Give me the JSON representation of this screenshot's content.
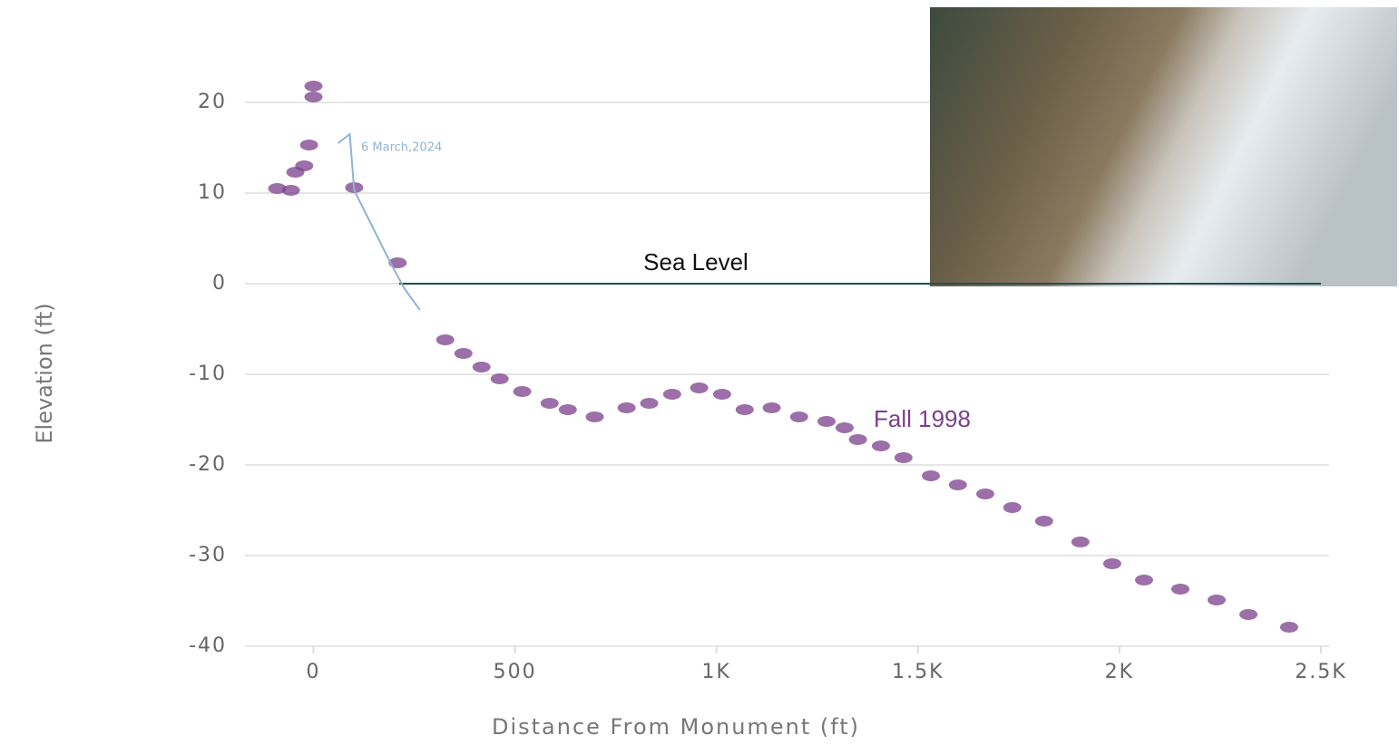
{
  "chart_data": {
    "type": "scatter",
    "x_label": "Distance From Monument (ft)",
    "y_label": "Elevation (ft)",
    "xlim": [
      -170,
      2500
    ],
    "ylim": [
      -40,
      24
    ],
    "xticks": [
      0,
      500,
      {
        "value": 1000,
        "label": "1K"
      },
      {
        "value": 1500,
        "label": "1.5K"
      },
      {
        "value": 2000,
        "label": "2K"
      },
      {
        "value": 2500,
        "label": "2.5K"
      }
    ],
    "yticks": [
      -40,
      -30,
      -20,
      -10,
      0,
      10,
      20
    ],
    "grid": true,
    "reference_line": {
      "label": "Sea Level",
      "y": 0,
      "color": "#1f4e5a"
    },
    "series": [
      {
        "name": "Fall 1998",
        "type": "scatter",
        "color": "#7b3f8c",
        "x": [
          -90,
          -56,
          -45,
          -23,
          -11,
          0,
          0,
          101,
          209,
          327,
          372,
          417,
          462,
          518,
          586,
          631,
          698,
          777,
          833,
          890,
          957,
          1014,
          1070,
          1137,
          1205,
          1273,
          1318,
          1351,
          1408,
          1464,
          1532,
          1599,
          1667,
          1734,
          1813,
          1903,
          1982,
          2061,
          2151,
          2241,
          2320,
          2421
        ],
        "values": [
          10.5,
          10.3,
          12.3,
          13,
          15.3,
          20.6,
          21.8,
          10.6,
          2.3,
          -6.2,
          -7.7,
          -9.2,
          -10.5,
          -11.9,
          -13.2,
          -13.9,
          -14.7,
          -13.7,
          -13.2,
          -12.2,
          -11.5,
          -12.2,
          -13.9,
          -13.7,
          -14.7,
          -15.2,
          -15.9,
          -17.2,
          -17.9,
          -19.2,
          -21.2,
          -22.2,
          -23.2,
          -24.7,
          -26.2,
          -28.5,
          -30.9,
          -32.7,
          -33.7,
          -34.9,
          -36.5,
          -37.9
        ]
      },
      {
        "name": "6 March,2024",
        "type": "line",
        "color": "#8fb3d4",
        "x": [
          61,
          90,
          101,
          146,
          191,
          225,
          264
        ],
        "values": [
          15.5,
          16.5,
          10.3,
          6.3,
          2.3,
          -0.5,
          -2.9
        ]
      }
    ]
  }
}
